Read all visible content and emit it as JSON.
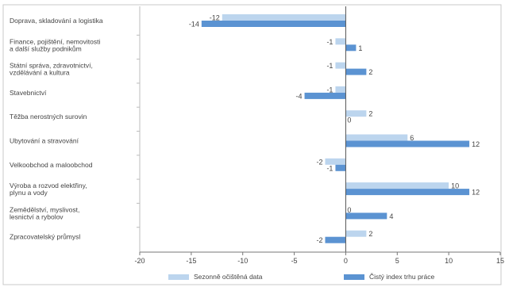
{
  "chart_data": {
    "type": "bar",
    "orientation": "horizontal",
    "categories": [
      [
        "Doprava, skladování a logistika"
      ],
      [
        "Finance, pojištění, nemovitosti",
        "a další služby podnikům"
      ],
      [
        "Státní správa, zdravotnictví,",
        "vzdělávání a kultura"
      ],
      [
        "Stavebnictví"
      ],
      [
        "Těžba nerostných surovin"
      ],
      [
        "Ubytování a stravování"
      ],
      [
        "Velkoobchod a maloobchod"
      ],
      [
        "Výroba a rozvod elektřiny,",
        "plynu a vody"
      ],
      [
        "Zemědělství, myslivost,",
        "lesnictví a rybolov"
      ],
      [
        "Zpracovatelský průmysl"
      ]
    ],
    "series": [
      {
        "name": "Sezonně očištěná data",
        "color": "#bcd5ee",
        "values": [
          -12,
          -1,
          -1,
          -1,
          2,
          6,
          -2,
          10,
          0,
          2
        ]
      },
      {
        "name": "Čistý index trhu práce",
        "color": "#5b93d2",
        "values": [
          -14,
          1,
          2,
          -4,
          0,
          12,
          -1,
          12,
          4,
          -2
        ]
      }
    ],
    "xlim": [
      -20,
      15
    ],
    "xticks": [
      -20,
      -15,
      -10,
      -5,
      0,
      5,
      10,
      15
    ],
    "grid": false,
    "legend_position": "bottom"
  }
}
